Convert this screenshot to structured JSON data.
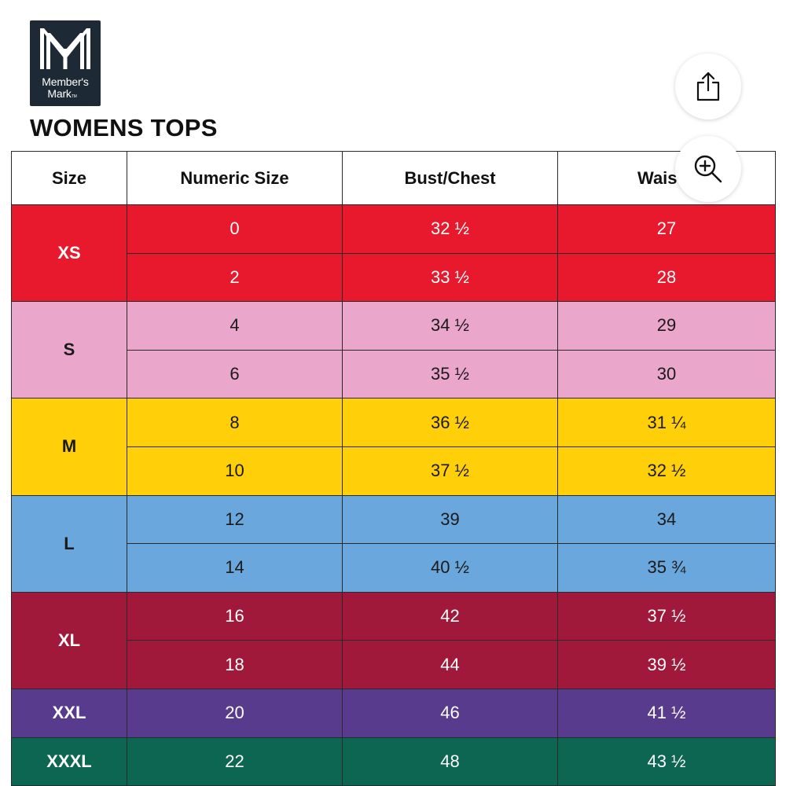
{
  "logo": {
    "line1": "Member's",
    "line2": "Mark",
    "tm": "TM",
    "bg_color": "#1d2a36"
  },
  "title": "WOMENS TOPS",
  "actions": {
    "share_icon": "share-icon",
    "zoom_icon": "zoom-in-icon"
  },
  "table": {
    "headers": [
      "Size",
      "Numeric Size",
      "Bust/Chest",
      "Wais"
    ],
    "groups": [
      {
        "size": "XS",
        "color": "#e8192c",
        "rows": [
          {
            "numeric": "0",
            "bust": "32 ½",
            "waist": "27"
          },
          {
            "numeric": "2",
            "bust": "33 ½",
            "waist": "28"
          }
        ]
      },
      {
        "size": "S",
        "color": "#eba6cc",
        "rows": [
          {
            "numeric": "4",
            "bust": "34 ½",
            "waist": "29"
          },
          {
            "numeric": "6",
            "bust": "35 ½",
            "waist": "30"
          }
        ]
      },
      {
        "size": "M",
        "color": "#ffcf0a",
        "rows": [
          {
            "numeric": "8",
            "bust": "36 ½",
            "waist": "31 ¼"
          },
          {
            "numeric": "10",
            "bust": "37 ½",
            "waist": "32 ½"
          }
        ]
      },
      {
        "size": "L",
        "color": "#6aa7dc",
        "rows": [
          {
            "numeric": "12",
            "bust": "39",
            "waist": "34"
          },
          {
            "numeric": "14",
            "bust": "40 ½",
            "waist": "35 ¾"
          }
        ]
      },
      {
        "size": "XL",
        "color": "#a0183a",
        "rows": [
          {
            "numeric": "16",
            "bust": "42",
            "waist": "37 ½"
          },
          {
            "numeric": "18",
            "bust": "44",
            "waist": "39 ½"
          }
        ]
      },
      {
        "size": "XXL",
        "color": "#593b8e",
        "rows": [
          {
            "numeric": "20",
            "bust": "46",
            "waist": "41 ½"
          }
        ]
      },
      {
        "size": "XXXL",
        "color": "#0c6651",
        "rows": [
          {
            "numeric": "22",
            "bust": "48",
            "waist": "43 ½"
          }
        ]
      }
    ]
  }
}
